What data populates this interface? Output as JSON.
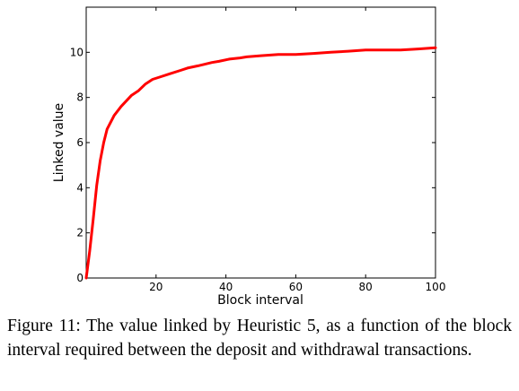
{
  "chart_data": {
    "type": "line",
    "title": "",
    "xlabel": "Block interval",
    "ylabel": "Linked value",
    "xlim": [
      0,
      100
    ],
    "ylim": [
      0,
      12
    ],
    "xticks": [
      20,
      40,
      60,
      80,
      100
    ],
    "yticks": [
      0,
      2,
      4,
      6,
      8,
      10
    ],
    "grid": false,
    "series": [
      {
        "color": "#ff0000",
        "x": [
          0,
          1,
          2,
          3,
          4,
          5,
          6,
          8,
          10,
          13,
          15,
          17,
          19,
          21,
          24,
          27,
          29,
          32,
          36,
          38,
          41,
          44,
          46,
          50,
          55,
          60,
          65,
          70,
          75,
          80,
          85,
          90,
          95,
          100
        ],
        "y": [
          0,
          1.2,
          2.6,
          4.1,
          5.2,
          6.0,
          6.6,
          7.2,
          7.6,
          8.1,
          8.3,
          8.6,
          8.8,
          8.9,
          9.05,
          9.2,
          9.3,
          9.4,
          9.55,
          9.6,
          9.7,
          9.75,
          9.8,
          9.85,
          9.9,
          9.9,
          9.95,
          10.0,
          10.05,
          10.1,
          10.1,
          10.1,
          10.15,
          10.2
        ]
      }
    ]
  },
  "caption": "Figure 11: The value linked by Heuristic 5, as a function of the block interval required between the deposit and withdrawal transactions."
}
